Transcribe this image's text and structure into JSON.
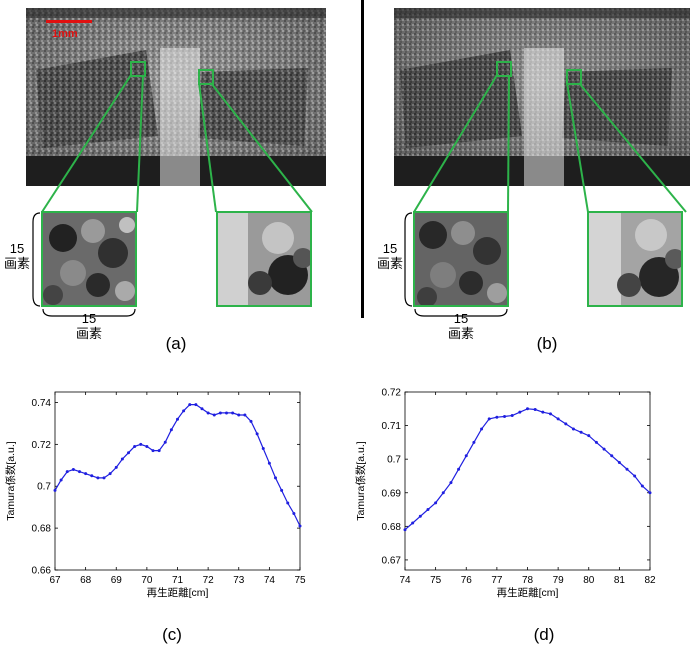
{
  "scalebar": {
    "label": "1mm",
    "color": "#e01010"
  },
  "panels": {
    "a": {
      "label": "(a)"
    },
    "b": {
      "label": "(b)"
    },
    "c": {
      "label": "(c)"
    },
    "d": {
      "label": "(d)"
    }
  },
  "zoom_box": {
    "side_pixels": "15",
    "unit": "画素",
    "border_color": "#2db34a"
  },
  "chart_data": [
    {
      "type": "line",
      "panel": "(c)",
      "xlabel": "再生距離[cm]",
      "ylabel": "Tamura係数[a.u.]",
      "xlim": [
        67,
        75
      ],
      "ylim": [
        0.66,
        0.745
      ],
      "xticks": [
        67,
        68,
        69,
        70,
        71,
        72,
        73,
        74,
        75
      ],
      "yticks": [
        0.66,
        0.68,
        0.7,
        0.72,
        0.74
      ],
      "ytick_labels": [
        "0.66",
        "0.68",
        "0.7",
        "0.72",
        "0.74"
      ],
      "series_color": "#1f1fe0",
      "x": [
        67.0,
        67.2,
        67.4,
        67.6,
        67.8,
        68.0,
        68.2,
        68.4,
        68.6,
        68.8,
        69.0,
        69.2,
        69.4,
        69.6,
        69.8,
        70.0,
        70.2,
        70.4,
        70.6,
        70.8,
        71.0,
        71.2,
        71.4,
        71.6,
        71.8,
        72.0,
        72.2,
        72.4,
        72.6,
        72.8,
        73.0,
        73.2,
        73.4,
        73.6,
        73.8,
        74.0,
        74.2,
        74.4,
        74.6,
        74.8,
        75.0
      ],
      "y": [
        0.698,
        0.703,
        0.707,
        0.708,
        0.707,
        0.706,
        0.705,
        0.704,
        0.704,
        0.706,
        0.709,
        0.713,
        0.716,
        0.719,
        0.72,
        0.719,
        0.717,
        0.717,
        0.721,
        0.727,
        0.732,
        0.736,
        0.739,
        0.739,
        0.737,
        0.735,
        0.734,
        0.735,
        0.735,
        0.735,
        0.734,
        0.734,
        0.731,
        0.725,
        0.718,
        0.711,
        0.704,
        0.698,
        0.692,
        0.687,
        0.681
      ]
    },
    {
      "type": "line",
      "panel": "(d)",
      "xlabel": "再生距離[cm]",
      "ylabel": "Tamura係数[a.u.]",
      "xlim": [
        74,
        82
      ],
      "ylim": [
        0.667,
        0.72
      ],
      "xticks": [
        74,
        75,
        76,
        77,
        78,
        79,
        80,
        81,
        82
      ],
      "yticks": [
        0.67,
        0.68,
        0.69,
        0.7,
        0.71,
        0.72
      ],
      "ytick_labels": [
        "0.67",
        "0.68",
        "0.69",
        "0.7",
        "0.71",
        "0.72"
      ],
      "series_color": "#1f1fe0",
      "x": [
        74.0,
        74.25,
        74.5,
        74.75,
        75.0,
        75.25,
        75.5,
        75.75,
        76.0,
        76.25,
        76.5,
        76.75,
        77.0,
        77.25,
        77.5,
        77.75,
        78.0,
        78.25,
        78.5,
        78.75,
        79.0,
        79.25,
        79.5,
        79.75,
        80.0,
        80.25,
        80.5,
        80.75,
        81.0,
        81.25,
        81.5,
        81.75,
        82.0
      ],
      "y": [
        0.679,
        0.681,
        0.683,
        0.685,
        0.687,
        0.69,
        0.693,
        0.697,
        0.701,
        0.705,
        0.709,
        0.712,
        0.7125,
        0.7127,
        0.713,
        0.714,
        0.715,
        0.7148,
        0.714,
        0.7135,
        0.712,
        0.7105,
        0.709,
        0.708,
        0.707,
        0.705,
        0.703,
        0.701,
        0.699,
        0.697,
        0.695,
        0.692,
        0.69
      ]
    }
  ]
}
